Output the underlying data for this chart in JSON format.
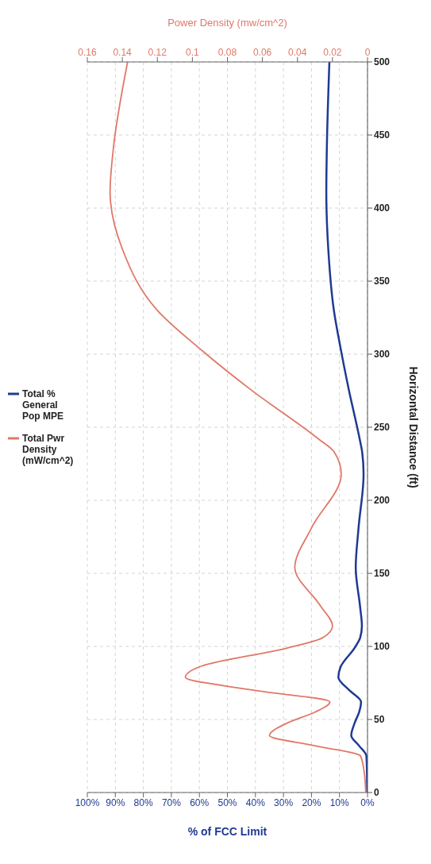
{
  "chart_data": {
    "type": "line",
    "xlabel": "% of FCC Limit",
    "x2label": "Power Density (mw/cm^2)",
    "ylabel": "Horizontal Distance (ft)",
    "xlim": [
      100,
      0
    ],
    "xticks": [
      {
        "value": 100,
        "label": "100%"
      },
      {
        "value": 90,
        "label": "90%"
      },
      {
        "value": 80,
        "label": "80%"
      },
      {
        "value": 70,
        "label": "70%"
      },
      {
        "value": 60,
        "label": "60%"
      },
      {
        "value": 50,
        "label": "50%"
      },
      {
        "value": 40,
        "label": "40%"
      },
      {
        "value": 30,
        "label": "30%"
      },
      {
        "value": 20,
        "label": "20%"
      },
      {
        "value": 10,
        "label": "10%"
      },
      {
        "value": 0,
        "label": "0%"
      }
    ],
    "x2lim": [
      0.16,
      0
    ],
    "x2ticks": [
      0.16,
      0.14,
      0.12,
      0.1,
      0.08,
      0.06,
      0.04,
      0.02,
      0
    ],
    "ylim": [
      0,
      500
    ],
    "yticks": [
      0,
      50,
      100,
      150,
      200,
      250,
      300,
      350,
      400,
      450,
      500
    ],
    "grid": true,
    "legend": "left",
    "marker": "none",
    "series": [
      {
        "name": "Total % General Pop MPE",
        "color": "#1f3a93",
        "x": [
          0.1,
          0.2,
          0.4,
          3,
          5.8,
          4.5,
          3,
          2.3,
          6.5,
          10.4,
          9.6,
          4.6,
          2.6,
          2,
          2.7,
          4.2,
          3.2,
          1.4,
          1.9,
          2.8,
          6.7,
          9.6,
          12,
          14,
          14.7,
          14.5,
          13.6
        ],
        "values": [
          0,
          15,
          25,
          32,
          39,
          48,
          55,
          62,
          70,
          79,
          86,
          99,
          106,
          114,
          128,
          154,
          181,
          218,
          233,
          242,
          276,
          304,
          330,
          372,
          411,
          442,
          500
        ]
      },
      {
        "name": "Total Pwr Density (mW/cm^2)",
        "color": "#e07868",
        "axis": "x2",
        "x": [
          0.001,
          0.002,
          0.004,
          0.03,
          0.056,
          0.045,
          0.03,
          0.0215,
          0.065,
          0.104,
          0.096,
          0.0455,
          0.0255,
          0.02,
          0.027,
          0.0415,
          0.032,
          0.015,
          0.019,
          0.028,
          0.067,
          0.096,
          0.12,
          0.14,
          0.147,
          0.145,
          0.137
        ],
        "values": [
          0,
          15,
          25,
          32,
          39,
          48,
          55,
          62,
          70,
          79,
          86,
          99,
          106,
          114,
          128,
          154,
          181,
          218,
          233,
          242,
          276,
          304,
          330,
          372,
          411,
          442,
          500
        ]
      }
    ]
  }
}
